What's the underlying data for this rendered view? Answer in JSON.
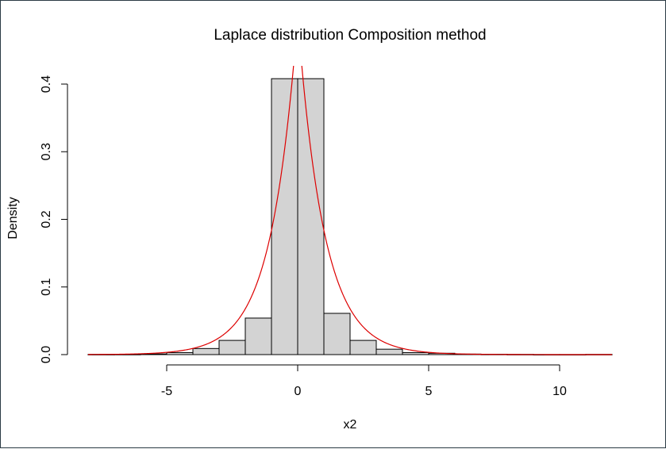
{
  "chart_data": {
    "type": "histogram",
    "title": "Laplace distribution Composition method",
    "xlabel": "x2",
    "ylabel": "Density",
    "xlim": [
      -8,
      12
    ],
    "ylim": [
      0,
      0.4
    ],
    "x_ticks": [
      -5,
      0,
      5,
      10
    ],
    "x_tick_labels": [
      "-5",
      "0",
      "5",
      "10"
    ],
    "y_ticks": [
      0.0,
      0.1,
      0.2,
      0.3,
      0.4
    ],
    "y_tick_labels": [
      "0.0",
      "0.1",
      "0.2",
      "0.3",
      "0.4"
    ],
    "bins": [
      {
        "from": -8,
        "to": -7,
        "density": 0.0003
      },
      {
        "from": -7,
        "to": -6,
        "density": 0.0004
      },
      {
        "from": -6,
        "to": -5,
        "density": 0.001
      },
      {
        "from": -5,
        "to": -4,
        "density": 0.003
      },
      {
        "from": -4,
        "to": -3,
        "density": 0.009
      },
      {
        "from": -3,
        "to": -2,
        "density": 0.021
      },
      {
        "from": -2,
        "to": -1,
        "density": 0.054
      },
      {
        "from": -1,
        "to": 0,
        "density": 0.408
      },
      {
        "from": 0,
        "to": 1,
        "density": 0.408
      },
      {
        "from": 1,
        "to": 2,
        "density": 0.061
      },
      {
        "from": 2,
        "to": 3,
        "density": 0.021
      },
      {
        "from": 3,
        "to": 4,
        "density": 0.008
      },
      {
        "from": 4,
        "to": 5,
        "density": 0.003
      },
      {
        "from": 5,
        "to": 6,
        "density": 0.002
      },
      {
        "from": 6,
        "to": 7,
        "density": 0.0008
      },
      {
        "from": 7,
        "to": 8,
        "density": 0.0005
      },
      {
        "from": 8,
        "to": 9,
        "density": 0.0003
      },
      {
        "from": 9,
        "to": 10,
        "density": 0.0001
      },
      {
        "from": 10,
        "to": 11,
        "density": 0.0001
      },
      {
        "from": 11,
        "to": 12,
        "density": 0.0003
      }
    ],
    "curve": {
      "function": "laplace_density",
      "location": 0,
      "scale": 1,
      "x_range": [
        -8,
        12
      ],
      "color": "#dd0000"
    },
    "bar_fill": "#d3d3d3",
    "bar_stroke": "#000000"
  }
}
